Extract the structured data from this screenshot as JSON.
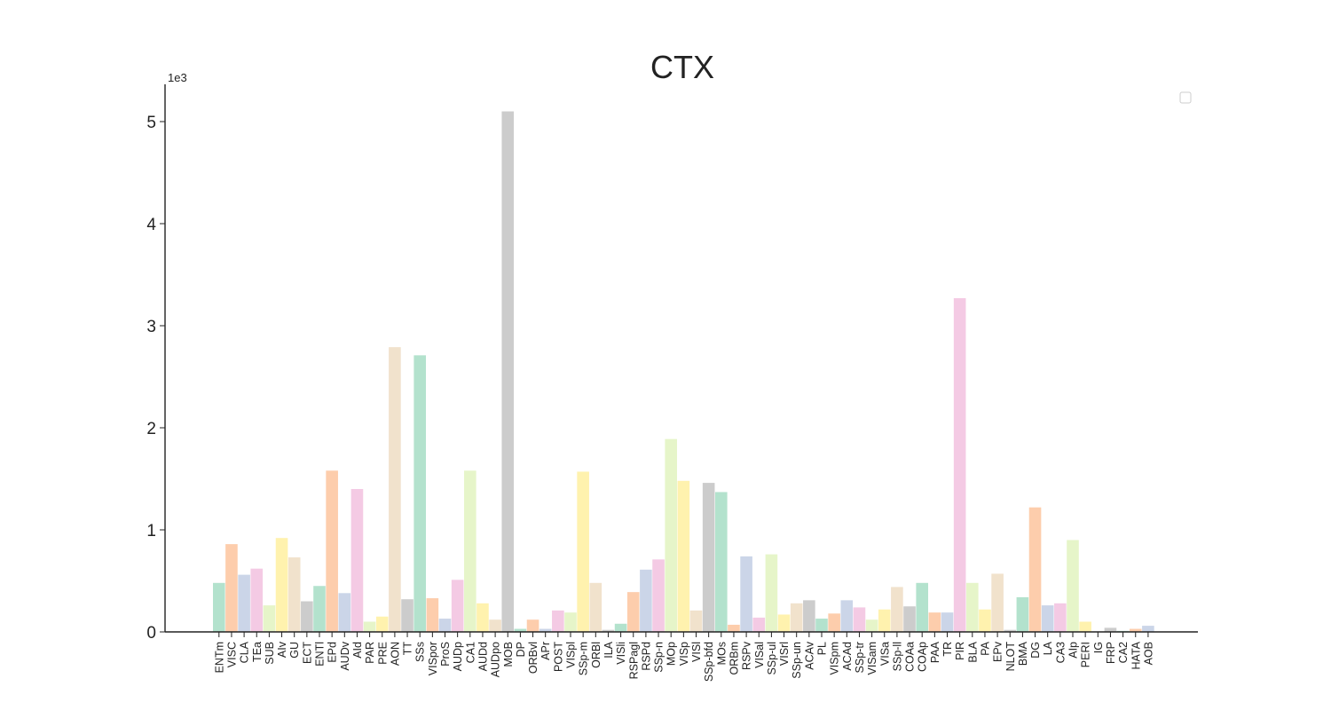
{
  "chart_data": {
    "type": "bar",
    "title": "CTX",
    "xlabel": "",
    "ylabel": "",
    "y_offset_label": "1e3",
    "ylim": [
      0,
      5.35
    ],
    "yticks": [
      0,
      1,
      2,
      3,
      4,
      5
    ],
    "ytick_labels": [
      "0",
      "1",
      "2",
      "3",
      "4",
      "5"
    ],
    "value_unit": "thousands",
    "grid": false,
    "legend": "top-right (empty)",
    "categories": [
      "ENTm",
      "VISC",
      "CLA",
      "TEa",
      "SUB",
      "AIv",
      "GU",
      "ECT",
      "ENTl",
      "EPd",
      "AUDv",
      "AId",
      "PAR",
      "PRE",
      "AON",
      "TT",
      "SSs",
      "VISpor",
      "ProS",
      "AUDp",
      "CA1",
      "AUDd",
      "AUDpo",
      "MOB",
      "DP",
      "ORBvl",
      "APr",
      "POST",
      "VISpl",
      "SSp-m",
      "ORBl",
      "ILA",
      "VISli",
      "RSPagl",
      "RSPd",
      "SSp-n",
      "MOp",
      "VISp",
      "VISl",
      "SSp-bfd",
      "MOs",
      "ORBm",
      "RSPv",
      "VISal",
      "SSp-ul",
      "VISrl",
      "SSp-un",
      "ACAv",
      "PL",
      "VISpm",
      "ACAd",
      "SSp-tr",
      "VISam",
      "VISa",
      "SSp-ll",
      "COAa",
      "COAp",
      "PAA",
      "TR",
      "PIR",
      "BLA",
      "PA",
      "EPv",
      "NLOT",
      "BMA",
      "DG",
      "LA",
      "CA3",
      "AIp",
      "PERI",
      "IG",
      "FRP",
      "CA2",
      "HATA",
      "AOB"
    ],
    "values": [
      0.48,
      0.86,
      0.56,
      0.62,
      0.26,
      0.92,
      0.73,
      0.3,
      0.45,
      1.58,
      0.38,
      1.4,
      0.1,
      0.15,
      2.79,
      0.32,
      2.71,
      0.33,
      0.13,
      0.51,
      1.58,
      0.28,
      0.12,
      5.1,
      0.03,
      0.12,
      0.03,
      0.21,
      0.19,
      1.57,
      0.48,
      0.02,
      0.08,
      0.39,
      0.61,
      0.71,
      1.89,
      1.48,
      0.21,
      1.46,
      1.37,
      0.07,
      0.74,
      0.14,
      0.76,
      0.17,
      0.28,
      0.31,
      0.13,
      0.18,
      0.31,
      0.24,
      0.12,
      0.22,
      0.44,
      0.25,
      0.48,
      0.19,
      0.19,
      3.27,
      0.48,
      0.22,
      0.57,
      0.02,
      0.34,
      1.22,
      0.26,
      0.28,
      0.9,
      0.1,
      0.0,
      0.04,
      0.01,
      0.03,
      0.06
    ],
    "colors": [
      "#b3e2cd",
      "#fdcdac",
      "#cbd5e8",
      "#f4cae4",
      "#e6f5c9",
      "#fff2ae",
      "#f1e2cc",
      "#cccccc"
    ]
  }
}
